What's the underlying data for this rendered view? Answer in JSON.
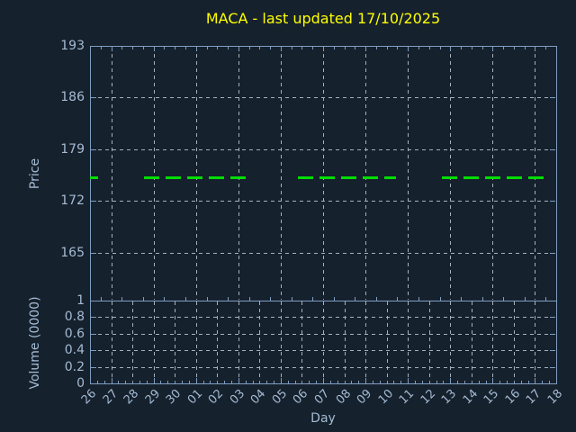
{
  "colors": {
    "background": "#16212e",
    "axis": "#7e9ec0",
    "tick_text": "#a4bbd2",
    "gridline": "#a8b0b8",
    "title_text": "#ffff00",
    "price_line": "#00dd00"
  },
  "chart_data": {
    "type": "line",
    "title": "MACA - last updated 17/10/2025",
    "xlabel": "Day",
    "x_tick_labels": [
      "26",
      "27",
      "28",
      "29",
      "30",
      "01",
      "02",
      "03",
      "04",
      "05",
      "06",
      "07",
      "08",
      "09",
      "10",
      "11",
      "12",
      "13",
      "14",
      "15",
      "16",
      "17",
      "18"
    ],
    "grid": "dashed, on",
    "legend": "none",
    "panels": {
      "price": {
        "ylabel": "Price",
        "yticks": [
          193,
          186,
          179,
          172,
          165
        ],
        "ylim": [
          158.5,
          193
        ],
        "xgrid_every_days": 2
      },
      "volume": {
        "ylabel": "Volume (0000)",
        "yticks": [
          1,
          0.8,
          0.6,
          0.4,
          0.2,
          0
        ],
        "ylim": [
          0,
          1
        ],
        "xgrid_every_days": 1,
        "values_visible": "no volume bars plotted (all zero / empty)"
      }
    },
    "series": [
      {
        "name": "MACA",
        "style": "dashed",
        "color": "#00dd00",
        "value": 175.2,
        "note": "flat line at ~175.2, plotted on weekdays only (gaps on weekends)",
        "segments": [
          {
            "from_day": "26",
            "to_day": "26",
            "i0": 0.0,
            "i1": 0.38
          },
          {
            "from_day": "29",
            "to_day": "03",
            "i0": 2.55,
            "i1": 7.55
          },
          {
            "from_day": "06",
            "to_day": "10",
            "i0": 9.8,
            "i1": 14.45
          },
          {
            "from_day": "13",
            "to_day": "17",
            "i0": 16.6,
            "i1": 21.4
          }
        ]
      }
    ]
  }
}
